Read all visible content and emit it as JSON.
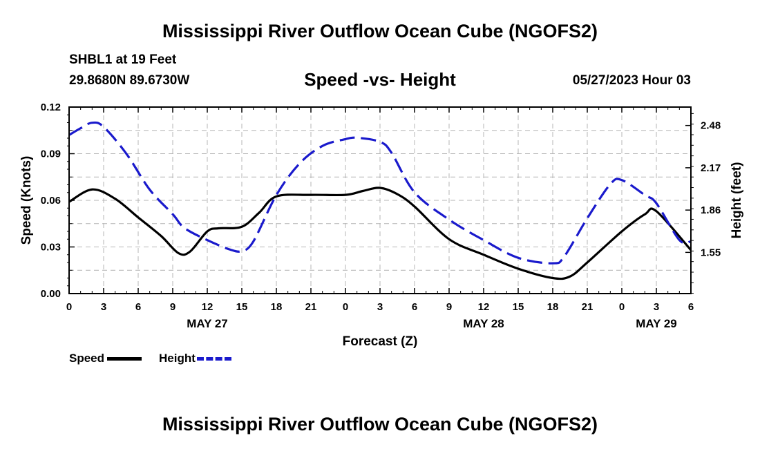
{
  "header": {
    "title": "Mississippi River Outflow Ocean Cube (NGOFS2)",
    "station": "SHBL1 at 19 Feet",
    "coords": "29.8680N  89.6730W",
    "subtitle": "Speed -vs- Height",
    "datetime": "05/27/2023 Hour 03"
  },
  "footer": {
    "title": "Mississippi River Outflow Ocean Cube (NGOFS2)"
  },
  "colors": {
    "speed": "#000000",
    "height": "#1a1acc",
    "grid": "#b4b4b4"
  },
  "chart_data": {
    "type": "line",
    "title": "Speed -vs- Height",
    "xlabel": "Forecast (Z)",
    "ylabel": "Speed (Knots)",
    "y2label": "Height (feet)",
    "xlim": [
      0,
      54
    ],
    "ylim": [
      0,
      0.12
    ],
    "y2lim": [
      1.248,
      2.615
    ],
    "x_ticks": [
      0,
      3,
      6,
      9,
      12,
      15,
      18,
      21,
      24,
      27,
      30,
      33,
      36,
      39,
      42,
      45,
      48,
      51,
      54
    ],
    "x_tick_labels": [
      "0",
      "3",
      "6",
      "9",
      "12",
      "15",
      "18",
      "21",
      "0",
      "3",
      "6",
      "9",
      "12",
      "15",
      "18",
      "21",
      "0",
      "3",
      "6"
    ],
    "date_labels": [
      {
        "x": 12,
        "label": "MAY 27"
      },
      {
        "x": 36,
        "label": "MAY 28"
      },
      {
        "x": 51,
        "label": "MAY 29"
      }
    ],
    "y_ticks": [
      0,
      0.03,
      0.06,
      0.09,
      0.12
    ],
    "y_tick_labels": [
      "0.00",
      "0.03",
      "0.06",
      "0.09",
      "0.12"
    ],
    "y2_ticks": [
      1.55,
      1.86,
      2.17,
      2.48
    ],
    "y2_tick_labels": [
      "1.55",
      "1.86",
      "2.17",
      "2.48"
    ],
    "grid": true,
    "legend": [
      {
        "name": "Speed",
        "style": "solid"
      },
      {
        "name": "Height",
        "style": "dashed"
      }
    ],
    "series": [
      {
        "name": "Speed",
        "axis": "left",
        "style": "solid",
        "x": [
          0,
          2,
          4,
          6,
          8,
          9.5,
          10.5,
          12,
          13,
          15,
          16.5,
          18,
          21,
          24,
          25.5,
          27,
          28.5,
          30,
          33,
          36,
          39,
          42,
          43.5,
          45,
          48,
          50,
          51,
          54
        ],
        "y": [
          0.059,
          0.067,
          0.061,
          0.049,
          0.037,
          0.026,
          0.027,
          0.04,
          0.042,
          0.043,
          0.052,
          0.0625,
          0.0635,
          0.0635,
          0.066,
          0.068,
          0.064,
          0.056,
          0.035,
          0.025,
          0.016,
          0.01,
          0.011,
          0.02,
          0.04,
          0.051,
          0.053,
          0.028
        ]
      },
      {
        "name": "Height",
        "axis": "right",
        "style": "dashed",
        "x": [
          0,
          1,
          2,
          3,
          5,
          7,
          9,
          10,
          12,
          14,
          15,
          16,
          18,
          20,
          22,
          24,
          25,
          27,
          28,
          30,
          33,
          36,
          39,
          42,
          43,
          45,
          47,
          48,
          50,
          51,
          53,
          54
        ],
        "y": [
          2.41,
          2.46,
          2.5,
          2.47,
          2.27,
          2.01,
          1.83,
          1.73,
          1.64,
          1.57,
          1.56,
          1.63,
          1.97,
          2.2,
          2.33,
          2.38,
          2.39,
          2.36,
          2.28,
          1.99,
          1.79,
          1.64,
          1.51,
          1.47,
          1.52,
          1.8,
          2.05,
          2.08,
          1.97,
          1.91,
          1.64,
          1.63
        ]
      }
    ]
  }
}
